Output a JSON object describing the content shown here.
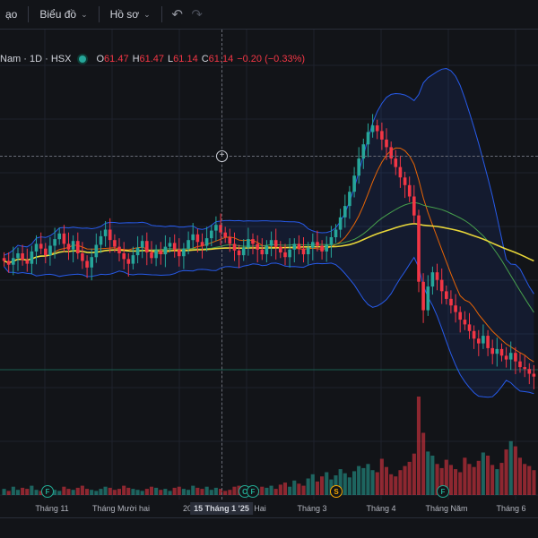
{
  "toolbar": {
    "item0_label": "ạo",
    "chart_menu_label": "Biểu đồ",
    "profile_menu_label": "Hồ sơ",
    "undo_icon": "undo-icon",
    "redo_icon": "redo-icon"
  },
  "legend": {
    "symbol": "Nam · 1D · HSX",
    "o_key": "O",
    "o_val": "61.47",
    "h_key": "H",
    "h_val": "61.47",
    "l_key": "L",
    "l_val": "61.14",
    "c_key": "C",
    "c_val": "61.14",
    "change": "−0.20 (−0.33%)"
  },
  "xaxis": {
    "labels": [
      "Tháng 11",
      "Tháng Mười hai",
      "20",
      "Hai",
      "Tháng 3",
      "Tháng 4",
      "Tháng Năm",
      "Tháng 6"
    ],
    "crosshair_label": "15 Tháng 1 '25"
  },
  "markers": [
    {
      "letter": "F",
      "kind": "f"
    },
    {
      "letter": "C",
      "kind": "f"
    },
    {
      "letter": "F",
      "kind": "f"
    },
    {
      "letter": "S",
      "kind": "s"
    },
    {
      "letter": "F",
      "kind": "f"
    }
  ],
  "colors": {
    "up": "#26a69a",
    "down": "#f23645",
    "bollinger": "#2962ff",
    "ma_orange": "#ff6d00",
    "ma_green": "#4caf50",
    "ma_yellow": "#ffeb3b"
  },
  "chart_data": {
    "type": "candlestick",
    "close_series": [
      60.2,
      59.8,
      60.5,
      61.0,
      60.3,
      59.9,
      61.2,
      62.0,
      61.5,
      60.8,
      61.8,
      62.5,
      63.1,
      62.0,
      61.4,
      62.3,
      61.0,
      60.2,
      59.5,
      60.6,
      61.9,
      62.8,
      63.5,
      62.4,
      61.7,
      61.0,
      60.4,
      59.9,
      60.8,
      61.6,
      62.3,
      61.1,
      60.5,
      61.3,
      60.9,
      61.7,
      62.1,
      61.4,
      60.7,
      61.5,
      62.4,
      63.0,
      62.2,
      61.8,
      62.6,
      63.4,
      64.0,
      63.2,
      62.7,
      62.0,
      61.3,
      60.8,
      61.6,
      62.5,
      62.0,
      61.4,
      60.9,
      61.8,
      62.4,
      61.7,
      61.1,
      60.6,
      61.4,
      62.0,
      61.5,
      60.9,
      61.6,
      62.2,
      61.8,
      61.2,
      61.9,
      62.7,
      63.5,
      64.8,
      66.0,
      67.5,
      69.2,
      71.0,
      72.5,
      73.8,
      74.5,
      73.9,
      73.0,
      72.2,
      71.0,
      70.1,
      69.0,
      68.2,
      67.0,
      65.0,
      58.0,
      55.0,
      57.5,
      59.0,
      58.2,
      57.0,
      56.2,
      55.5,
      54.8,
      54.0,
      53.5,
      52.8,
      52.0,
      51.5,
      52.3,
      51.0,
      50.4,
      50.9,
      50.2,
      49.8,
      50.5,
      49.6,
      49.0,
      48.8,
      48.3,
      48.0
    ],
    "volume_series": [
      6,
      4,
      8,
      5,
      7,
      6,
      9,
      5,
      4,
      6,
      7,
      5,
      4,
      8,
      6,
      5,
      7,
      9,
      6,
      5,
      4,
      6,
      8,
      7,
      5,
      6,
      9,
      7,
      6,
      5,
      4,
      6,
      8,
      7,
      5,
      6,
      4,
      7,
      8,
      6,
      5,
      9,
      7,
      6,
      8,
      5,
      7,
      6,
      4,
      5,
      8,
      9,
      6,
      7,
      5,
      6,
      8,
      7,
      9,
      6,
      10,
      12,
      8,
      14,
      11,
      9,
      16,
      20,
      13,
      18,
      22,
      15,
      19,
      25,
      21,
      17,
      23,
      28,
      26,
      30,
      24,
      22,
      35,
      27,
      20,
      18,
      24,
      28,
      32,
      40,
      95,
      60,
      42,
      38,
      30,
      26,
      34,
      29,
      25,
      22,
      36,
      30,
      27,
      33,
      41,
      38,
      29,
      25,
      31,
      44,
      52,
      47,
      36,
      30,
      28,
      24
    ]
  }
}
